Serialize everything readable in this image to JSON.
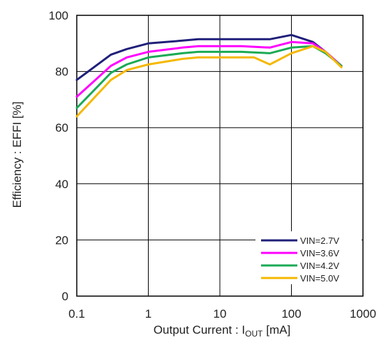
{
  "chart_data": {
    "type": "line",
    "title": "",
    "xlabel": {
      "prefix": "Output Current : I",
      "sub": "OUT",
      "suffix": " [mA]"
    },
    "ylabel": "Efficiency : EFFI [%]",
    "x_scale": "log",
    "xlim": [
      0.1,
      1000
    ],
    "ylim": [
      0,
      100
    ],
    "x_ticks": [
      0.1,
      1,
      10,
      100,
      1000
    ],
    "x_tick_labels": [
      "0.1",
      "1",
      "10",
      "100",
      "1000"
    ],
    "y_ticks": [
      0,
      20,
      40,
      60,
      80,
      100
    ],
    "y_tick_labels": [
      "0",
      "20",
      "40",
      "60",
      "80",
      "100"
    ],
    "grid": true,
    "legend_position": "bottom-right",
    "series": [
      {
        "name": "VIN=2.7V",
        "color": "#1f1f7a",
        "x": [
          0.1,
          0.3,
          0.5,
          1,
          3,
          5,
          10,
          20,
          50,
          100,
          200,
          300,
          500
        ],
        "y": [
          77,
          86,
          88,
          90,
          91,
          91.5,
          91.5,
          91.5,
          91.5,
          93,
          90.5,
          87,
          82
        ]
      },
      {
        "name": "VIN=3.6V",
        "color": "#ff00ff",
        "x": [
          0.1,
          0.3,
          0.5,
          1,
          3,
          5,
          10,
          20,
          50,
          100,
          200,
          300,
          500
        ],
        "y": [
          71,
          82,
          85,
          87,
          88.5,
          89,
          89,
          89,
          88.5,
          90.5,
          90,
          87,
          82
        ]
      },
      {
        "name": "VIN=4.2V",
        "color": "#1aaa55",
        "x": [
          0.1,
          0.3,
          0.5,
          1,
          3,
          5,
          10,
          20,
          50,
          100,
          200,
          300,
          500
        ],
        "y": [
          67,
          79.5,
          82.5,
          85,
          86.5,
          87,
          87,
          87,
          86.5,
          88.5,
          89,
          86.5,
          82
        ]
      },
      {
        "name": "VIN=5.0V",
        "color": "#f5b800",
        "x": [
          0.1,
          0.3,
          0.5,
          1,
          3,
          5,
          10,
          20,
          30,
          50,
          100,
          200,
          300,
          500
        ],
        "y": [
          64,
          77,
          80.5,
          82.5,
          84.5,
          85,
          85,
          85,
          85,
          82.5,
          86.5,
          89,
          87,
          81.5
        ]
      }
    ]
  }
}
